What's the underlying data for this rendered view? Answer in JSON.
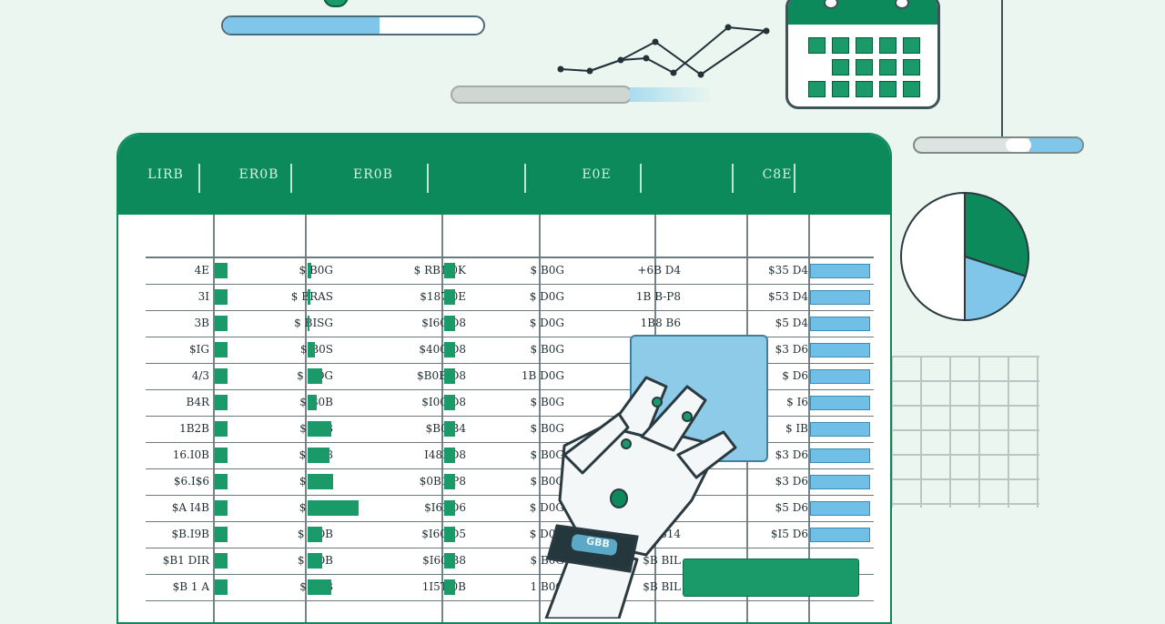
{
  "colors": {
    "accent": "#0d8a5c",
    "blue": "#6fbfe6",
    "background": "#eaf6ef"
  },
  "header": {
    "columns": [
      "LIRB",
      "ER0B",
      "ER0B",
      "",
      "E0E",
      "",
      "C8E",
      ""
    ]
  },
  "rows": [
    {
      "c1": "4E",
      "c2": "$ B0G",
      "c3": "$ RB1 0K",
      "c4": "$ B0G",
      "c5": "+6B D4",
      "c6": "$35 D4",
      "g1": 14,
      "g2": 4,
      "g3": 12,
      "b": 64
    },
    {
      "c1": "3I",
      "c2": "$ BRAS",
      "c3": "$187 0E",
      "c4": "$ D0G",
      "c5": "1B B-P8",
      "c6": "$53 D4",
      "g1": 14,
      "g2": 3,
      "g3": 12,
      "b": 64
    },
    {
      "c1": "3B",
      "c2": "$ BISG",
      "c3": "$I60 D8",
      "c4": "$ D0G",
      "c5": "1B8 B6",
      "c6": "$5 D4",
      "g1": 14,
      "g2": 2,
      "g3": 12,
      "b": 64
    },
    {
      "c1": "$IG",
      "c2": "$ B0S",
      "c3": "$400 D8",
      "c4": "$ B0G",
      "c5": "1B0 B6",
      "c6": "$3 D6",
      "g1": 14,
      "g2": 8,
      "g3": 12,
      "b": 64
    },
    {
      "c1": "4/3",
      "c2": "$ BOG",
      "c3": "$B0B D8",
      "c4": "1B D0G",
      "c5": "$B",
      "c6": "$ D6",
      "g1": 14,
      "g2": 16,
      "g3": 12,
      "b": 64
    },
    {
      "c1": "B4R",
      "c2": "$ B0B",
      "c3": "$I00 D8",
      "c4": "$ B0G",
      "c5": "",
      "c6": "$ I6",
      "g1": 14,
      "g2": 10,
      "g3": 12,
      "b": 64
    },
    {
      "c1": "1B2B",
      "c2": "$ B0B",
      "c3": "$B0 B4",
      "c4": "$ B0G",
      "c5": "",
      "c6": "$ IB",
      "g1": 14,
      "g2": 26,
      "g3": 12,
      "b": 64
    },
    {
      "c1": "16.I0B",
      "c2": "$ BD8",
      "c3": "I48I D8",
      "c4": "$ B0G",
      "c5": "",
      "c6": "$3 D6",
      "g1": 14,
      "g2": 24,
      "g3": 12,
      "b": 64
    },
    {
      "c1": "$6.I$6",
      "c2": "$ BPB",
      "c3": "$0B1 P8",
      "c4": "$ B0G",
      "c5": "$5 PIL",
      "c6": "$3 D6",
      "g1": 14,
      "g2": 28,
      "g3": 12,
      "b": 64
    },
    {
      "c1": "$A I4B",
      "c2": "$ BSB",
      "c3": "$I6I D6",
      "c4": "$ D0G",
      "c5": "$3 I4",
      "c6": "$5 D6",
      "g1": 14,
      "g2": 56,
      "g3": 12,
      "b": 64
    },
    {
      "c1": "$B.I9B",
      "c2": "$ BOB",
      "c3": "$I60 D5",
      "c4": "$ D0G",
      "c5": "$5 B14",
      "c6": "$I5 D6",
      "g1": 14,
      "g2": 16,
      "g3": 12,
      "b": 64
    },
    {
      "c1": "$B1 DIR",
      "c2": "$ BOB",
      "c3": "$I60 B8",
      "c4": "$ B0G",
      "c5": "$B BIL",
      "c6": "",
      "g1": 14,
      "g2": 16,
      "g3": 12,
      "b": 0
    },
    {
      "c1": "$B 1 A",
      "c2": "$ B0B",
      "c3": "1I5T 0B",
      "c4": "1 B0G",
      "c5": "$B BIL",
      "c6": "",
      "g1": 14,
      "g2": 26,
      "g3": 12,
      "b": 0
    }
  ],
  "calendar": {
    "cells": 14
  },
  "pie": {
    "slices": [
      {
        "value": 30,
        "color": "#0d8a5c"
      },
      {
        "value": 20,
        "color": "#7fc6ea"
      },
      {
        "value": 50,
        "color": "#ffffff"
      }
    ]
  },
  "wristband": {
    "label": "GBB"
  },
  "sliders": [
    {
      "fill": 0.35
    },
    {
      "fill": 0.72
    },
    {
      "fill": 0.6
    }
  ]
}
